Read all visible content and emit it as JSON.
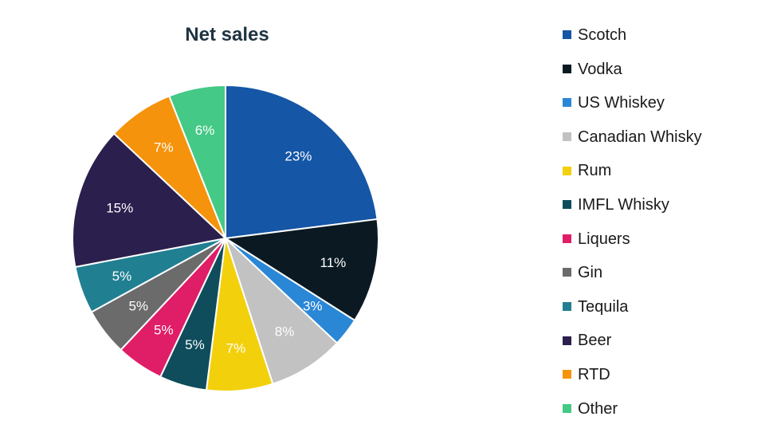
{
  "chart_data": {
    "type": "pie",
    "title": "Net sales",
    "legend_position": "right",
    "slices": [
      {
        "name": "Scotch",
        "value": 23,
        "label": "23%",
        "color": "#1556a6",
        "label_color": "#ffffff"
      },
      {
        "name": "Vodka",
        "value": 11,
        "label": "11%",
        "color": "#0b1a22",
        "label_color": "#ffffff"
      },
      {
        "name": "US Whiskey",
        "value": 3,
        "label": "3%",
        "color": "#2a87d6",
        "label_color": "#ffffff"
      },
      {
        "name": "Canadian Whisky",
        "value": 8,
        "label": "8%",
        "color": "#c2c2c2",
        "label_color": "#ffffff"
      },
      {
        "name": "Rum",
        "value": 7,
        "label": "7%",
        "color": "#f2d00c",
        "label_color": "#ffffff"
      },
      {
        "name": "IMFL Whisky",
        "value": 5,
        "label": "5%",
        "color": "#0f4d5c",
        "label_color": "#ffffff"
      },
      {
        "name": "Liquers",
        "value": 5,
        "label": "5%",
        "color": "#e01d67",
        "label_color": "#ffffff"
      },
      {
        "name": "Gin",
        "value": 5,
        "label": "5%",
        "color": "#6b6b6b",
        "label_color": "#ffffff"
      },
      {
        "name": "Tequila",
        "value": 5,
        "label": "5%",
        "color": "#217f92",
        "label_color": "#ffffff"
      },
      {
        "name": "Beer",
        "value": 15,
        "label": "15%",
        "color": "#2a1f4d",
        "label_color": "#ffffff"
      },
      {
        "name": "RTD",
        "value": 7,
        "label": "7%",
        "color": "#f5930c",
        "label_color": "#ffffff"
      },
      {
        "name": "Other",
        "value": 6,
        "label": "6%",
        "color": "#44c986",
        "label_color": "#ffffff"
      }
    ]
  }
}
